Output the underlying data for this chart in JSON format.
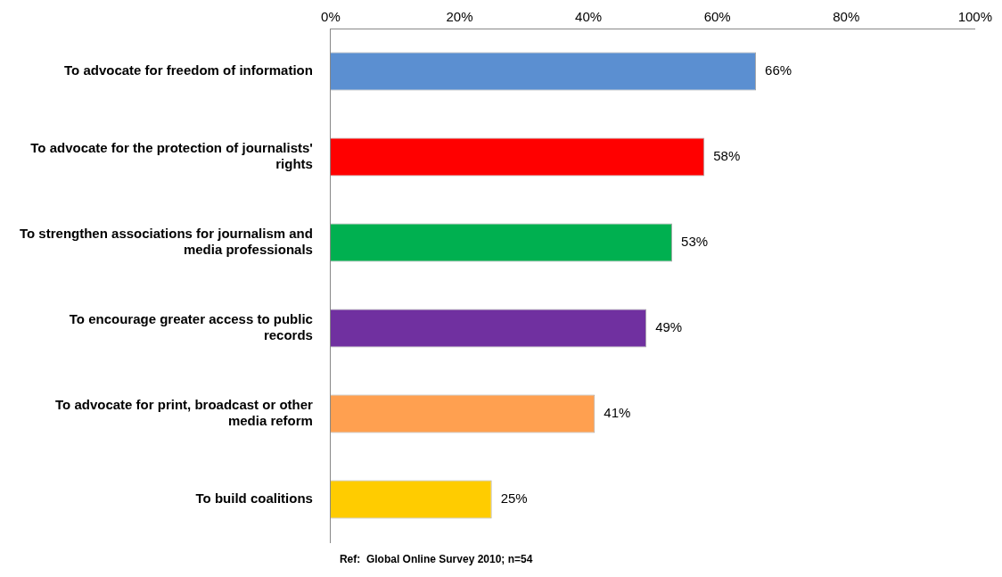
{
  "chart_data": {
    "type": "bar",
    "orientation": "horizontal",
    "categories": [
      "To advocate for freedom of information",
      "To advocate for the protection of journalists' rights",
      "To strengthen associations for journalism and media professionals",
      "To encourage greater access to public records",
      "To advocate for print, broadcast or other media reform",
      "To build coalitions"
    ],
    "values": [
      66,
      58,
      53,
      49,
      41,
      25
    ],
    "colors": [
      "#5b8fd1",
      "#ff0000",
      "#00b050",
      "#7030a0",
      "#ffa050",
      "#ffcc00"
    ],
    "value_labels": [
      "66%",
      "58%",
      "53%",
      "49%",
      "41%",
      "25%"
    ],
    "xlim": [
      0,
      100
    ],
    "xticks": [
      {
        "value": 0,
        "label": "0%"
      },
      {
        "value": 20,
        "label": "20%"
      },
      {
        "value": 40,
        "label": "40%"
      },
      {
        "value": 60,
        "label": "60%"
      },
      {
        "value": 80,
        "label": "80%"
      },
      {
        "value": 100,
        "label": "100%"
      }
    ],
    "grid": false,
    "legend": false,
    "annotations": [
      "Ref:  Global Online Survey 2010; n=54"
    ]
  }
}
